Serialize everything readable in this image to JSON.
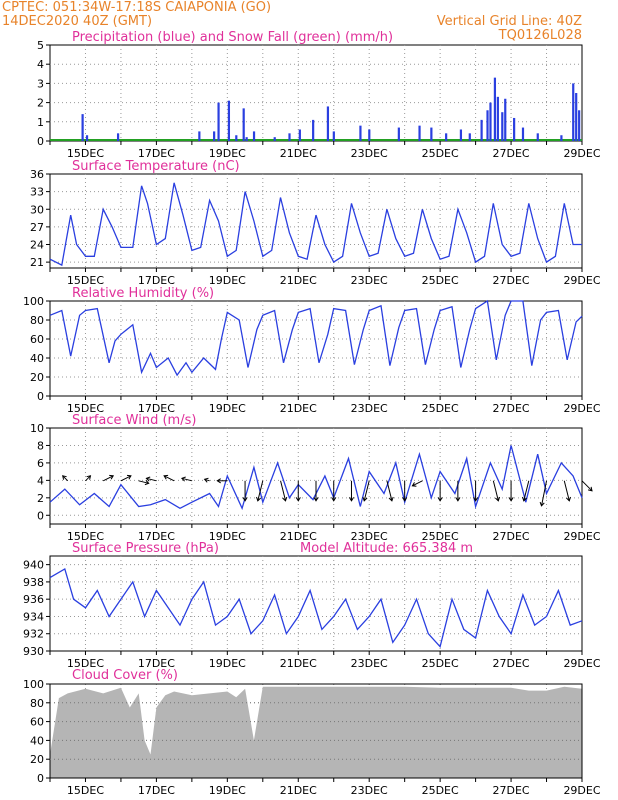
{
  "header": {
    "line1_left": "CPTEC:   051:34W-17:18S   CAIAPONIA (GO)",
    "line2_left": "14DEC2020 40Z (GMT)",
    "line2_right": "Vertical Grid Line: 40Z",
    "line3_right": "TQ0126L028"
  },
  "colors": {
    "header": "#e8832a",
    "title": "#e0309a",
    "line": "#2a3fe0",
    "precip": "#2a3fe0",
    "snow": "#22a022",
    "cloud": "#b5b5b5",
    "arrow": "#000000",
    "grid": "#999999"
  },
  "x_axis": {
    "start": "14DEC",
    "end": "29DEC",
    "tick_labels": [
      "15DEC",
      "17DEC",
      "19DEC",
      "21DEC",
      "23DEC",
      "25DEC",
      "27DEC",
      "29DEC"
    ]
  },
  "chart_data": [
    {
      "id": "precip",
      "type": "bar",
      "title": "Precipitation (blue) and Snow Fall (green) (mm/h)",
      "ylim": [
        0,
        5
      ],
      "yticks": [
        0,
        1,
        2,
        3,
        4,
        5
      ],
      "grid": true,
      "series": [
        {
          "x": [
            "14DEC22Z",
            "15DEC01Z",
            "15DEC22Z",
            "18DEC05Z",
            "18DEC15Z",
            "18DEC18Z",
            "19DEC01Z",
            "19DEC06Z",
            "19DEC11Z",
            "19DEC13Z",
            "19DEC18Z",
            "20DEC08Z",
            "20DEC18Z",
            "21DEC01Z",
            "21DEC10Z",
            "21DEC20Z",
            "22DEC00Z",
            "22DEC18Z",
            "23DEC00Z",
            "23DEC20Z",
            "24DEC10Z",
            "24DEC18Z",
            "25DEC04Z",
            "25DEC14Z",
            "25DEC20Z",
            "26DEC04Z",
            "26DEC08Z",
            "26DEC10Z",
            "26DEC13Z",
            "26DEC15Z",
            "26DEC18Z",
            "26DEC20Z",
            "27DEC02Z",
            "27DEC08Z",
            "27DEC18Z",
            "28DEC10Z",
            "28DEC18Z",
            "28DEC20Z",
            "28DEC22Z"
          ],
          "values": [
            1.4,
            0.3,
            0.4,
            0.5,
            0.5,
            2.0,
            2.1,
            0.3,
            1.7,
            0.2,
            0.5,
            0.2,
            0.4,
            0.6,
            1.1,
            1.8,
            0.5,
            0.8,
            0.6,
            0.7,
            0.8,
            0.7,
            0.4,
            0.6,
            0.4,
            1.1,
            1.6,
            2.0,
            3.3,
            2.3,
            1.5,
            2.2,
            1.2,
            0.7,
            0.4,
            0.3,
            3.0,
            2.5,
            1.6
          ]
        }
      ]
    },
    {
      "id": "temp",
      "type": "line",
      "title": "Surface Temperature (nC)",
      "ylim": [
        20,
        36
      ],
      "yticks": [
        21,
        24,
        27,
        30,
        33,
        36
      ],
      "grid": true,
      "series": [
        {
          "x": [
            "14DEC00Z",
            "14DEC08Z",
            "14DEC14Z",
            "14DEC18Z",
            "15DEC00Z",
            "15DEC06Z",
            "15DEC12Z",
            "15DEC18Z",
            "16DEC00Z",
            "16DEC08Z",
            "16DEC14Z",
            "16DEC18Z",
            "17DEC00Z",
            "17DEC06Z",
            "17DEC12Z",
            "17DEC18Z",
            "18DEC00Z",
            "18DEC06Z",
            "18DEC12Z",
            "18DEC18Z",
            "19DEC00Z",
            "19DEC06Z",
            "19DEC12Z",
            "19DEC18Z",
            "20DEC00Z",
            "20DEC06Z",
            "20DEC12Z",
            "20DEC18Z",
            "21DEC00Z",
            "21DEC06Z",
            "21DEC12Z",
            "21DEC18Z",
            "22DEC00Z",
            "22DEC06Z",
            "22DEC12Z",
            "22DEC18Z",
            "23DEC00Z",
            "23DEC06Z",
            "23DEC12Z",
            "23DEC18Z",
            "24DEC00Z",
            "24DEC06Z",
            "24DEC12Z",
            "24DEC18Z",
            "25DEC00Z",
            "25DEC06Z",
            "25DEC12Z",
            "25DEC18Z",
            "26DEC00Z",
            "26DEC06Z",
            "26DEC12Z",
            "26DEC18Z",
            "27DEC00Z",
            "27DEC06Z",
            "27DEC12Z",
            "27DEC18Z",
            "28DEC00Z",
            "28DEC06Z",
            "28DEC12Z",
            "28DEC18Z",
            "29DEC00Z"
          ],
          "values": [
            21.5,
            20.5,
            29,
            24,
            22,
            22,
            30,
            27,
            23.5,
            23.5,
            34,
            31,
            24,
            25,
            34.5,
            29,
            23,
            23.5,
            31.5,
            28,
            22,
            23,
            33,
            28,
            22,
            23,
            32,
            26,
            22,
            21.5,
            29,
            24,
            21,
            22,
            31,
            26,
            22,
            22.5,
            30,
            25,
            22,
            22.5,
            30,
            25,
            21.5,
            22,
            30,
            26,
            21,
            22,
            31,
            24,
            22,
            22.5,
            31,
            25,
            21,
            22,
            31,
            24,
            24
          ]
        }
      ]
    },
    {
      "id": "rh",
      "type": "line",
      "title": "Relative Humidity (%)",
      "ylim": [
        0,
        100
      ],
      "yticks": [
        0,
        20,
        40,
        60,
        80,
        100
      ],
      "grid": true,
      "series": [
        {
          "x": [
            "14DEC00Z",
            "14DEC08Z",
            "14DEC14Z",
            "14DEC20Z",
            "15DEC00Z",
            "15DEC08Z",
            "15DEC16Z",
            "15DEC20Z",
            "16DEC00Z",
            "16DEC08Z",
            "16DEC14Z",
            "16DEC20Z",
            "17DEC00Z",
            "17DEC08Z",
            "17DEC14Z",
            "17DEC20Z",
            "18DEC00Z",
            "18DEC08Z",
            "18DEC16Z",
            "18DEC20Z",
            "19DEC00Z",
            "19DEC08Z",
            "19DEC14Z",
            "19DEC20Z",
            "20DEC00Z",
            "20DEC08Z",
            "20DEC14Z",
            "20DEC20Z",
            "21DEC00Z",
            "21DEC08Z",
            "21DEC14Z",
            "21DEC20Z",
            "22DEC00Z",
            "22DEC08Z",
            "22DEC14Z",
            "22DEC20Z",
            "23DEC00Z",
            "23DEC08Z",
            "23DEC14Z",
            "23DEC20Z",
            "24DEC00Z",
            "24DEC08Z",
            "24DEC14Z",
            "24DEC20Z",
            "25DEC00Z",
            "25DEC08Z",
            "25DEC14Z",
            "25DEC20Z",
            "26DEC00Z",
            "26DEC08Z",
            "26DEC14Z",
            "26DEC20Z",
            "27DEC00Z",
            "27DEC08Z",
            "27DEC14Z",
            "27DEC20Z",
            "28DEC00Z",
            "28DEC08Z",
            "28DEC14Z",
            "28DEC20Z",
            "29DEC00Z"
          ],
          "values": [
            85,
            90,
            42,
            85,
            90,
            92,
            35,
            58,
            65,
            75,
            25,
            45,
            30,
            40,
            22,
            35,
            25,
            40,
            28,
            60,
            88,
            80,
            30,
            70,
            85,
            90,
            35,
            70,
            88,
            92,
            35,
            65,
            92,
            90,
            33,
            70,
            90,
            95,
            32,
            72,
            90,
            92,
            33,
            70,
            90,
            94,
            30,
            70,
            92,
            100,
            38,
            85,
            100,
            100,
            32,
            80,
            88,
            90,
            38,
            78,
            84
          ]
        }
      ]
    },
    {
      "id": "wind",
      "type": "line",
      "title": "Surface Wind (m/s)",
      "ylim": [
        -1,
        10
      ],
      "yticks": [
        0,
        2,
        4,
        6,
        8,
        10
      ],
      "grid": true,
      "series": [
        {
          "x": [
            "14DEC00Z",
            "14DEC10Z",
            "14DEC20Z",
            "15DEC06Z",
            "15DEC16Z",
            "16DEC00Z",
            "16DEC12Z",
            "16DEC20Z",
            "17DEC06Z",
            "17DEC16Z",
            "18DEC00Z",
            "18DEC12Z",
            "18DEC18Z",
            "19DEC00Z",
            "19DEC10Z",
            "19DEC18Z",
            "20DEC00Z",
            "20DEC10Z",
            "20DEC18Z",
            "21DEC00Z",
            "21DEC10Z",
            "21DEC18Z",
            "22DEC00Z",
            "22DEC10Z",
            "22DEC18Z",
            "23DEC00Z",
            "23DEC10Z",
            "23DEC18Z",
            "24DEC00Z",
            "24DEC10Z",
            "24DEC18Z",
            "25DEC00Z",
            "25DEC10Z",
            "25DEC18Z",
            "26DEC00Z",
            "26DEC10Z",
            "26DEC18Z",
            "27DEC00Z",
            "27DEC10Z",
            "27DEC18Z",
            "28DEC00Z",
            "28DEC10Z",
            "28DEC18Z",
            "29DEC00Z"
          ],
          "values": [
            1.5,
            3,
            1.2,
            2.5,
            1,
            3.5,
            1,
            1.2,
            1.8,
            0.8,
            1.5,
            2.5,
            1,
            4.5,
            0.8,
            5.5,
            1.5,
            6,
            2,
            3.5,
            1.8,
            4.5,
            2,
            6.5,
            1,
            5,
            2.5,
            6,
            1.5,
            7,
            2,
            5,
            2.5,
            6.5,
            1,
            6,
            3,
            8,
            1.5,
            7,
            2.5,
            6,
            4.5,
            2
          ]
        }
      ]
    },
    {
      "id": "pressure",
      "type": "line",
      "title": "Surface Pressure (hPa)",
      "subtitle": "Model Altitude: 665.384 m",
      "ylim": [
        930,
        941
      ],
      "yticks": [
        930,
        932,
        934,
        936,
        938,
        940
      ],
      "grid": true,
      "series": [
        {
          "x": [
            "14DEC00Z",
            "14DEC10Z",
            "14DEC16Z",
            "15DEC00Z",
            "15DEC08Z",
            "15DEC16Z",
            "16DEC00Z",
            "16DEC08Z",
            "16DEC16Z",
            "17DEC00Z",
            "17DEC08Z",
            "17DEC16Z",
            "18DEC00Z",
            "18DEC08Z",
            "18DEC16Z",
            "19DEC00Z",
            "19DEC08Z",
            "19DEC16Z",
            "20DEC00Z",
            "20DEC08Z",
            "20DEC16Z",
            "21DEC00Z",
            "21DEC08Z",
            "21DEC16Z",
            "22DEC00Z",
            "22DEC08Z",
            "22DEC16Z",
            "23DEC00Z",
            "23DEC08Z",
            "23DEC16Z",
            "24DEC00Z",
            "24DEC08Z",
            "24DEC16Z",
            "25DEC00Z",
            "25DEC08Z",
            "25DEC16Z",
            "26DEC00Z",
            "26DEC08Z",
            "26DEC16Z",
            "27DEC00Z",
            "27DEC08Z",
            "27DEC16Z",
            "28DEC00Z",
            "28DEC08Z",
            "28DEC16Z",
            "29DEC00Z"
          ],
          "values": [
            938.5,
            939.5,
            936,
            935,
            937,
            934,
            936,
            938,
            934,
            937,
            935,
            933,
            936,
            938,
            933,
            934,
            936,
            932,
            933.5,
            936.5,
            932,
            934,
            937,
            932.5,
            934,
            936,
            932.5,
            934,
            936,
            931,
            933,
            936,
            932,
            930.5,
            936,
            932.5,
            931.5,
            937,
            934,
            932,
            936.5,
            933,
            934,
            937,
            933,
            933.5
          ]
        }
      ]
    },
    {
      "id": "cloud",
      "type": "area",
      "title": "Cloud Cover (%)",
      "ylim": [
        0,
        100
      ],
      "yticks": [
        0,
        20,
        40,
        60,
        80,
        100
      ],
      "grid": true,
      "series": [
        {
          "x": [
            "14DEC00Z",
            "14DEC06Z",
            "14DEC12Z",
            "15DEC00Z",
            "15DEC12Z",
            "16DEC00Z",
            "16DEC06Z",
            "16DEC12Z",
            "16DEC16Z",
            "16DEC20Z",
            "17DEC00Z",
            "17DEC06Z",
            "17DEC12Z",
            "18DEC00Z",
            "18DEC12Z",
            "19DEC00Z",
            "19DEC06Z",
            "19DEC12Z",
            "19DEC18Z",
            "20DEC00Z",
            "21DEC00Z",
            "22DEC00Z",
            "23DEC00Z",
            "24DEC00Z",
            "25DEC00Z",
            "26DEC00Z",
            "27DEC00Z",
            "27DEC12Z",
            "28DEC00Z",
            "28DEC12Z",
            "29DEC00Z"
          ],
          "values": [
            25,
            85,
            90,
            95,
            90,
            96,
            75,
            90,
            40,
            25,
            75,
            88,
            92,
            88,
            90,
            92,
            86,
            95,
            40,
            97,
            97,
            97,
            97,
            97,
            96,
            96,
            96,
            93,
            93,
            97,
            95
          ]
        }
      ]
    },
    {
      "id": "wind_vectors",
      "type": "scatter",
      "description_arrows": "wind direction arrows drawn at fixed baseline",
      "series": [
        {
          "x": [
            "14DEC12Z",
            "15DEC00Z",
            "15DEC12Z",
            "16DEC00Z",
            "16DEC12Z",
            "17DEC00Z",
            "17DEC12Z",
            "18DEC00Z",
            "18DEC12Z",
            "19DEC00Z",
            "19DEC12Z",
            "20DEC00Z",
            "20DEC12Z",
            "21DEC00Z",
            "21DEC12Z",
            "22DEC00Z",
            "22DEC12Z",
            "23DEC00Z",
            "23DEC12Z",
            "24DEC00Z",
            "24DEC12Z",
            "25DEC00Z",
            "25DEC12Z",
            "26DEC00Z",
            "26DEC12Z",
            "27DEC00Z",
            "27DEC12Z",
            "28DEC00Z",
            "28DEC12Z",
            "29DEC00Z"
          ],
          "u": [
            -1,
            1,
            2,
            2,
            2,
            -2,
            -2,
            -2,
            -1,
            -2,
            0,
            -1,
            1,
            0,
            0,
            0,
            0,
            -1,
            1,
            0,
            -2,
            0,
            0,
            0,
            1,
            0,
            -1,
            -1,
            1,
            2
          ],
          "v": [
            1,
            1,
            1,
            1,
            -0.5,
            0.5,
            1,
            0.5,
            0.3,
            0,
            -4,
            -4,
            -4,
            -4,
            -4,
            -4,
            -4,
            -4,
            -4,
            -4,
            -1,
            -4,
            -4,
            -4,
            -4,
            -4,
            -4,
            -5,
            -4,
            -2
          ]
        }
      ]
    }
  ]
}
